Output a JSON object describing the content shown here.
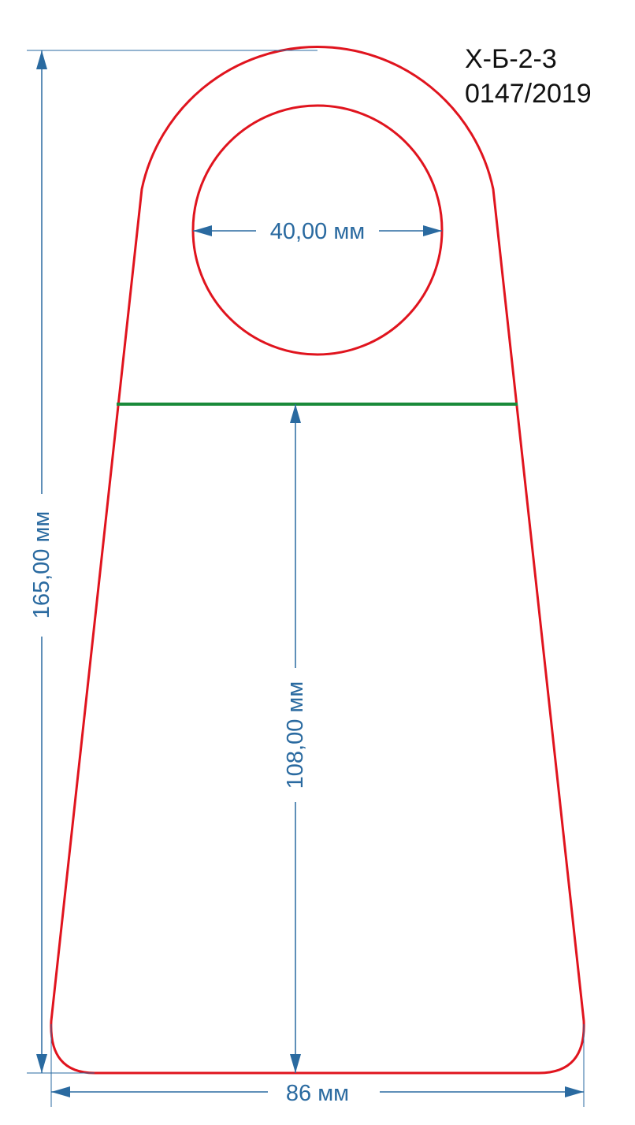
{
  "drawing": {
    "code": "Х-Б-2-3",
    "number": "0147/2019"
  },
  "dimensions": {
    "total_height": "165,00 мм",
    "hole_diameter": "40,00 мм",
    "lower_height": "108,00 мм",
    "bottom_width": "86 мм"
  },
  "colors": {
    "outline": "#e0141e",
    "fold_line": "#1a8a3a",
    "dimension": "#2a6aa0",
    "text": "#111111"
  }
}
